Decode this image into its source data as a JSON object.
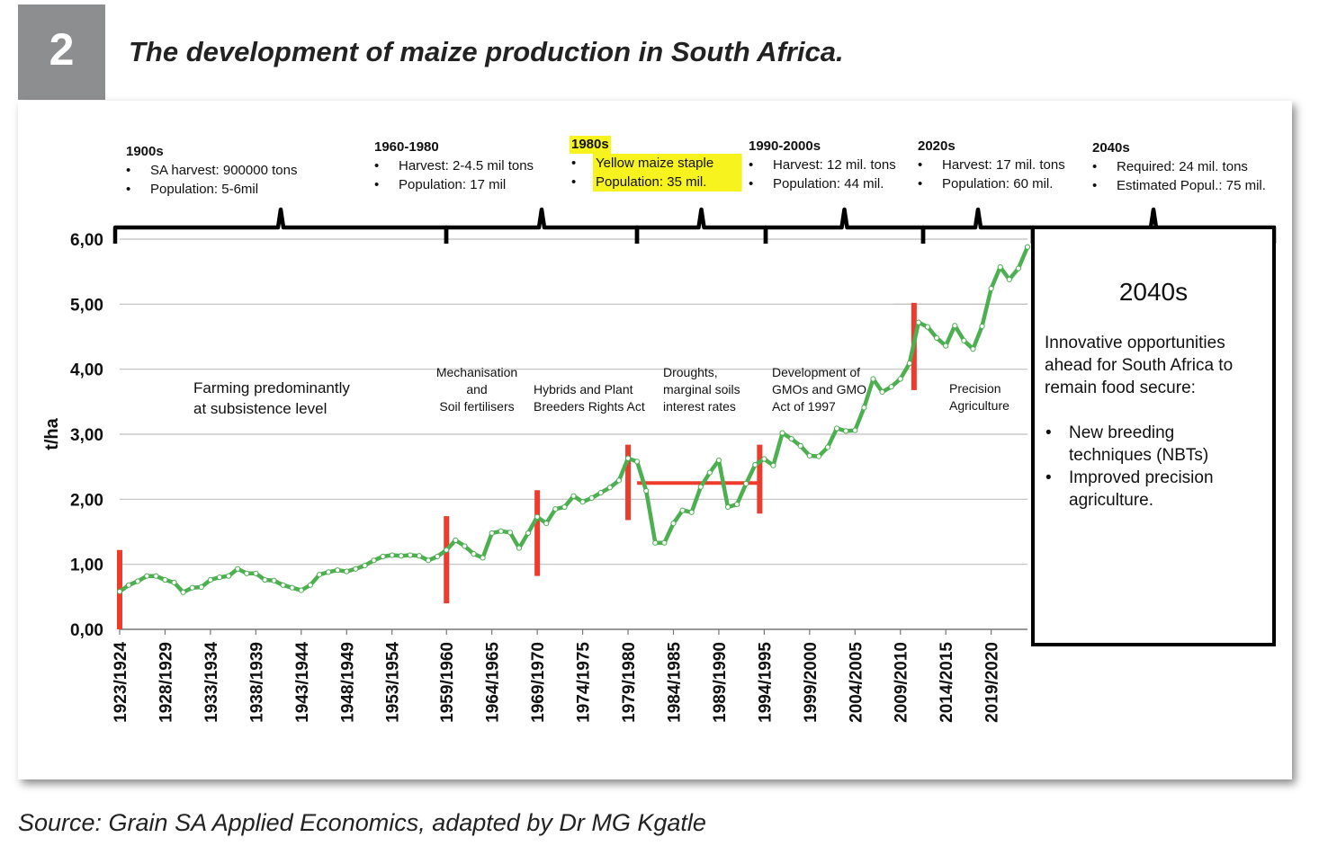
{
  "figure": {
    "number": "2",
    "title": "The development of maize production in South Africa.",
    "source": "Source: Grain SA Applied Economics, adapted by Dr MG Kgatle"
  },
  "eras": [
    {
      "heading": "1900s",
      "bullets": [
        "SA harvest: 900000 tons",
        "Population: 5-6mil"
      ]
    },
    {
      "heading": "1960-1980",
      "bullets": [
        "Harvest: 2-4.5 mil tons",
        "Population: 17 mil"
      ]
    },
    {
      "heading": "1980s",
      "bullets": [
        "Yellow maize staple",
        "Population: 35 mil."
      ],
      "highlight": "#f7f31e"
    },
    {
      "heading": "1990-2000s",
      "bullets": [
        "Harvest: 12 mil. tons",
        "Population: 44 mil."
      ]
    },
    {
      "heading": "2020s",
      "bullets": [
        "Harvest: 17 mil. tons",
        "Population: 60 mil."
      ]
    },
    {
      "heading": "2040s",
      "bullets": [
        "Required: 24 mil. tons",
        "Estimated Popul.: 75 mil."
      ]
    }
  ],
  "annotations": {
    "subsistence": [
      "Farming predominantly",
      "at subsistence level"
    ],
    "mechanisation": [
      "Mechanisation",
      "and",
      "Soil fertilisers"
    ],
    "hybrids": [
      "Hybrids and Plant",
      "Breeders Rights Act"
    ],
    "droughts": [
      "Droughts,",
      "marginal soils",
      "interest rates"
    ],
    "gmo": [
      "Development of",
      "GMOs and GMO",
      "Act of 1997"
    ],
    "precision": [
      "Precision",
      "Agriculture"
    ]
  },
  "future_box": {
    "title": "2040s",
    "text": [
      "Innovative opportunities",
      "ahead for South Africa to",
      "remain food secure:"
    ],
    "bullets": [
      [
        "New breeding",
        "techniques (NBTs)"
      ],
      [
        "Improved precision",
        "agriculture."
      ]
    ]
  },
  "colors": {
    "line": "#4caf50",
    "marker": "#ffffff",
    "bar": "#ef3b2c",
    "grid": "#bfbfbf",
    "highlight": "#f7f31e"
  },
  "chart_data": {
    "type": "line",
    "title": "",
    "xlabel": "",
    "ylabel": "t/ha",
    "ylim": [
      0,
      6
    ],
    "yticks": [
      "0,00",
      "1,00",
      "2,00",
      "3,00",
      "4,00",
      "5,00",
      "6,00"
    ],
    "xtick_labels": [
      "1923/1924",
      "1928/1929",
      "1933/1934",
      "1938/1939",
      "1943/1944",
      "1948/1949",
      "1953/1954",
      "1959/1960",
      "1964/1965",
      "1969/1970",
      "1974/1975",
      "1979/1980",
      "1984/1985",
      "1989/1990",
      "1994/1995",
      "1999/2000",
      "2004/2005",
      "2009/2010",
      "2014/2015",
      "2019/2020"
    ],
    "x_start_year": 1923,
    "series": [
      {
        "name": "",
        "values": [
          0.58,
          0.68,
          0.74,
          0.82,
          0.82,
          0.76,
          0.72,
          0.57,
          0.64,
          0.65,
          0.76,
          0.8,
          0.82,
          0.93,
          0.86,
          0.86,
          0.76,
          0.75,
          0.68,
          0.64,
          0.6,
          0.68,
          0.84,
          0.88,
          0.91,
          0.89,
          0.93,
          0.98,
          1.06,
          1.12,
          1.14,
          1.13,
          1.14,
          1.13,
          1.06,
          1.12,
          1.22,
          1.37,
          1.28,
          1.16,
          1.1,
          1.48,
          1.51,
          1.49,
          1.25,
          1.48,
          1.73,
          1.63,
          1.85,
          1.88,
          2.05,
          1.96,
          2.02,
          2.1,
          2.18,
          2.29,
          2.63,
          2.58,
          2.13,
          1.33,
          1.33,
          1.63,
          1.83,
          1.8,
          2.19,
          2.41,
          2.6,
          1.88,
          1.92,
          2.24,
          2.53,
          2.62,
          2.52,
          3.02,
          2.93,
          2.82,
          2.67,
          2.66,
          2.8,
          3.09,
          3.05,
          3.06,
          3.41,
          3.85,
          3.65,
          3.73,
          3.85,
          4.09,
          4.72,
          4.65,
          4.48,
          4.36,
          4.67,
          4.44,
          4.31,
          4.66,
          5.24,
          5.57,
          5.38,
          5.55,
          5.88
        ]
      }
    ],
    "reference_lines": [
      {
        "type": "vertical",
        "x_year": 1923,
        "y_range": [
          0,
          1.22
        ]
      },
      {
        "type": "vertical",
        "x_year": 1959,
        "y_range": [
          0.4,
          1.74
        ]
      },
      {
        "type": "vertical",
        "x_year": 1969,
        "y_range": [
          0.82,
          2.14
        ]
      },
      {
        "type": "vertical",
        "x_year": 1979,
        "y_range": [
          1.68,
          2.84
        ]
      },
      {
        "type": "vertical",
        "x_year": 1993.5,
        "y_range": [
          1.78,
          2.84
        ]
      },
      {
        "type": "vertical",
        "x_year": 2010.5,
        "y_range": [
          3.68,
          5.02
        ]
      },
      {
        "type": "horizontal",
        "y": 2.25,
        "x_year_range": [
          1980,
          1993.5
        ]
      }
    ],
    "grid": {
      "horizontal": true
    }
  }
}
